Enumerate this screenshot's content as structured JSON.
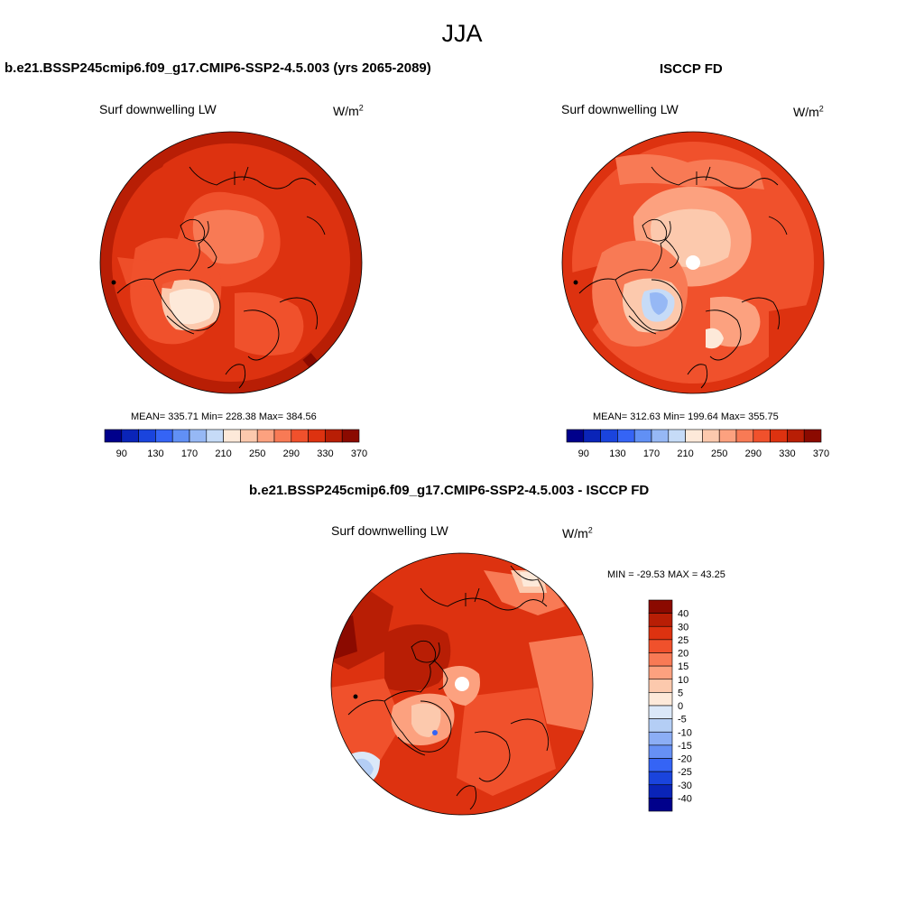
{
  "main_title": "JJA",
  "panels": {
    "model": {
      "title": "b.e21.BSSP245cmip6.f09_g17.CMIP6-SSP2-4.5.003 (yrs 2065-2089)",
      "variable": "Surf downwelling LW",
      "units_base": "W/m",
      "units_exp": "2",
      "stats": "MEAN= 335.71  Min= 228.38  Max= 384.56",
      "colorbar_labels": [
        "90",
        "130",
        "170",
        "210",
        "250",
        "290",
        "330",
        "370"
      ]
    },
    "obs": {
      "title": "ISCCP FD",
      "variable": "Surf downwelling LW",
      "units_base": "W/m",
      "units_exp": "2",
      "stats": "MEAN= 312.63  Min= 199.64  Max= 355.75",
      "colorbar_labels": [
        "90",
        "130",
        "170",
        "210",
        "250",
        "290",
        "330",
        "370"
      ]
    },
    "diff": {
      "title": "b.e21.BSSP245cmip6.f09_g17.CMIP6-SSP2-4.5.003 - ISCCP FD",
      "variable": "Surf downwelling LW",
      "units_base": "W/m",
      "units_exp": "2",
      "stats": "MIN = -29.53 MAX =  43.25",
      "colorbar_labels": [
        "40",
        "30",
        "25",
        "20",
        "15",
        "10",
        "5",
        "0",
        "-5",
        "-10",
        "-15",
        "-20",
        "-25",
        "-30",
        "-40"
      ]
    }
  },
  "colors": {
    "abs_scale": [
      "#00008b",
      "#0a24b8",
      "#1a44dd",
      "#3564f5",
      "#6190f5",
      "#96b8f5",
      "#c6dbf7",
      "#fde9d9",
      "#fcc9ad",
      "#fca17f",
      "#f87a55",
      "#f0512c",
      "#dd3210",
      "#b81e05",
      "#8b0a00"
    ],
    "diff_scale": [
      "#8b0a00",
      "#b81e05",
      "#dd3210",
      "#f0512c",
      "#f87a55",
      "#fca17f",
      "#fcc9ad",
      "#fde9d9",
      "#dbe8f8",
      "#b4cef5",
      "#8caef5",
      "#6690f5",
      "#3564f5",
      "#1a44dd",
      "#0a24b8",
      "#00008b"
    ]
  }
}
